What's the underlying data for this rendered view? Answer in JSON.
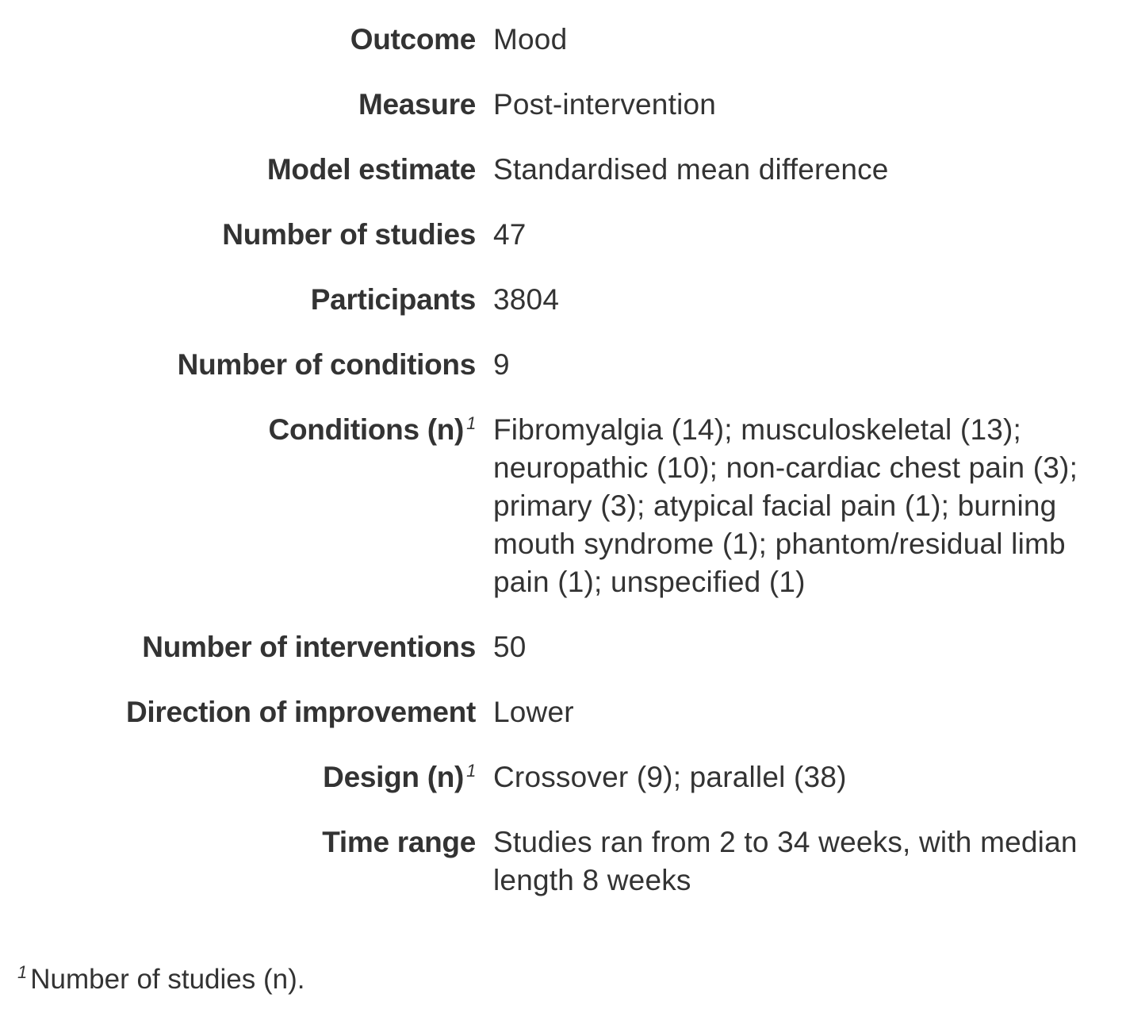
{
  "rows": [
    {
      "label": "Outcome",
      "value": "Mood"
    },
    {
      "label": "Measure",
      "value": "Post-intervention"
    },
    {
      "label": "Model estimate",
      "value": "Standardised mean difference"
    },
    {
      "label": "Number of studies",
      "value": "47"
    },
    {
      "label": "Participants",
      "value": "3804"
    },
    {
      "label": "Number of conditions",
      "value": "9"
    },
    {
      "label": "Conditions (n)",
      "sup": "1",
      "value": "Fibromyalgia (14); musculoskeletal (13); neuropathic (10); non-cardiac chest pain (3); primary (3); atypical facial pain (1); burning mouth syndrome (1); phantom/residual limb pain (1); unspecified (1)"
    },
    {
      "label": "Number of interventions",
      "value": "50"
    },
    {
      "label": "Direction of improvement",
      "value": "Lower"
    },
    {
      "label": "Design (n)",
      "sup": "1",
      "value": "Crossover (9); parallel (38)"
    },
    {
      "label": "Time range",
      "value": "Studies ran from 2 to 34 weeks, with median length 8 weeks"
    }
  ],
  "footnote": {
    "mark": "1",
    "text": "Number of studies (n)."
  }
}
